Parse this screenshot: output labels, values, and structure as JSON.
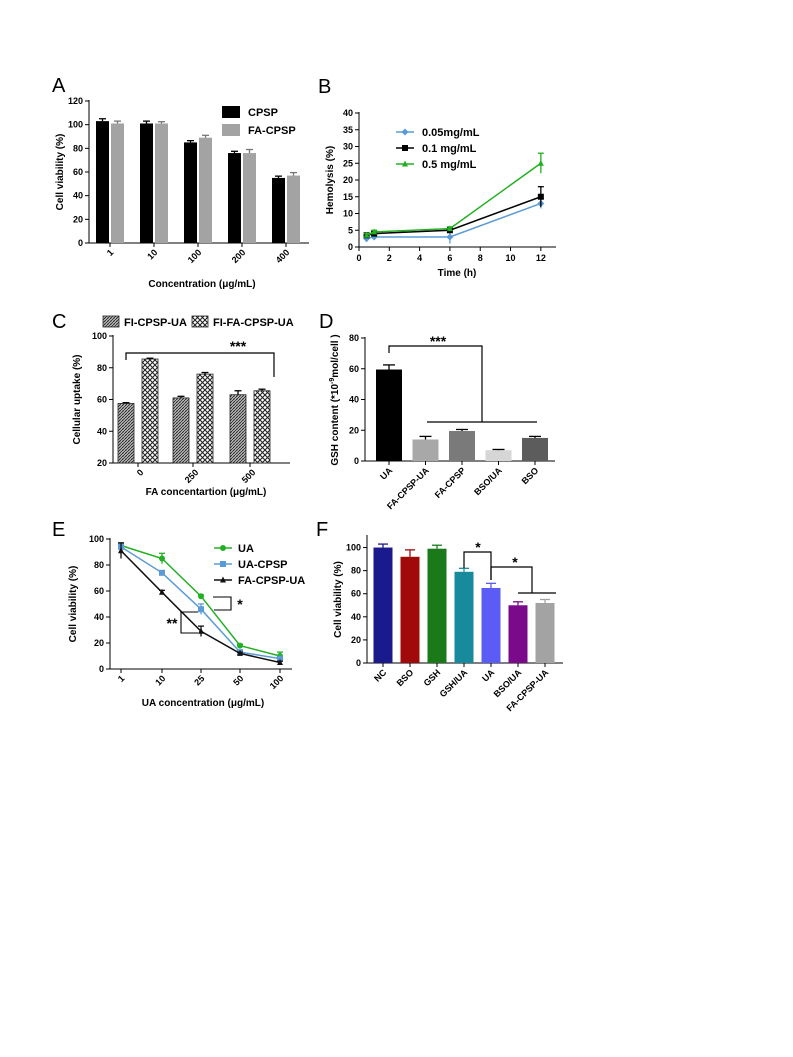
{
  "chart_data": [
    {
      "panel": "A",
      "type": "bar",
      "categories": [
        "1",
        "10",
        "100",
        "200",
        "400"
      ],
      "series": [
        {
          "name": "CPSP",
          "values": [
            103,
            101,
            85,
            76,
            55
          ],
          "errors": [
            2,
            2,
            1.5,
            1.5,
            1.5
          ],
          "color": "#000000"
        },
        {
          "name": "FA-CPSP",
          "values": [
            101,
            101,
            89,
            76,
            57
          ],
          "errors": [
            2,
            1.5,
            2,
            3,
            2.5
          ],
          "color": "#a3a3a3"
        }
      ],
      "ylabel": "Cell viability (%)",
      "xlabel": "Concentration (μg/mL)",
      "ylim": [
        0,
        120
      ],
      "yticks": [
        "0",
        "20",
        "40",
        "60",
        "80",
        "100",
        "120"
      ],
      "legend": "top-right"
    },
    {
      "panel": "B",
      "type": "line",
      "series": [
        {
          "name": "0.05mg/mL",
          "marker": "diamond",
          "color": "#5b9bd5",
          "x": [
            0.5,
            1,
            6,
            12
          ],
          "y": [
            2.5,
            3,
            3,
            13
          ],
          "errors": [
            1,
            0.5,
            2,
            1.5
          ]
        },
        {
          "name": "0.1  mg/mL",
          "marker": "square",
          "color": "#000000",
          "x": [
            0.5,
            1,
            6,
            12
          ],
          "y": [
            3.5,
            4,
            5,
            15
          ],
          "errors": [
            0.5,
            0.5,
            0.5,
            3
          ]
        },
        {
          "name": "0.5  mg/mL",
          "marker": "triangle",
          "color": "#22b022",
          "x": [
            0.5,
            1,
            6,
            12
          ],
          "y": [
            3.5,
            4.5,
            5.5,
            25
          ],
          "errors": [
            0.5,
            0.5,
            0.5,
            3
          ]
        }
      ],
      "ylabel": "Hemolysis (%)",
      "xlabel": "Time (h)",
      "xlim": [
        0,
        13
      ],
      "xticks": [
        "0",
        "2",
        "4",
        "6",
        "8",
        "10",
        "12"
      ],
      "ylim": [
        0,
        40
      ],
      "yticks": [
        "0",
        "5",
        "10",
        "15",
        "20",
        "25",
        "30",
        "35",
        "40"
      ],
      "legend": "top-left"
    },
    {
      "panel": "C",
      "type": "bar",
      "categories": [
        "0",
        "250",
        "500"
      ],
      "series": [
        {
          "name": "FI-CPSP-UA",
          "pattern": "dense-hatch",
          "values": [
            57.5,
            61,
            63
          ],
          "errors": [
            0.5,
            1,
            2.5
          ]
        },
        {
          "name": "FI-FA-CPSP-UA",
          "pattern": "checker",
          "values": [
            85.5,
            76,
            65.5
          ],
          "errors": [
            0.5,
            1,
            1
          ]
        }
      ],
      "ylabel": "Cellular uptake (%)",
      "xlabel": "FA concentartion (μg/mL)",
      "ylim": [
        20,
        100
      ],
      "yticks": [
        "20",
        "40",
        "60",
        "80",
        "100"
      ],
      "annotations": [
        "***"
      ],
      "legend": "top"
    },
    {
      "panel": "D",
      "type": "bar",
      "categories": [
        "UA",
        "FA-CPSP-UA",
        "FA-CPSP",
        "BSO/UA",
        "BSO"
      ],
      "values": [
        59.5,
        14,
        19.5,
        7,
        15
      ],
      "errors": [
        3,
        2,
        1,
        0.5,
        1
      ],
      "colors": [
        "#000000",
        "#a8a8a8",
        "#7a7a7a",
        "#d6d6d6",
        "#5c5c5c"
      ],
      "ylabel_prefix": "GSH content (*10",
      "ylabel_exp": "-9",
      "ylabel_suffix": "mol/cell )",
      "ylim": [
        0,
        80
      ],
      "yticks": [
        "0",
        "20",
        "40",
        "60",
        "80"
      ],
      "annotations": [
        "***"
      ]
    },
    {
      "panel": "E",
      "type": "line",
      "categories": [
        "1",
        "10",
        "25",
        "50",
        "100"
      ],
      "series": [
        {
          "name": "UA",
          "marker": "circle",
          "color": "#22b022",
          "values": [
            95,
            85,
            56,
            18,
            10
          ],
          "errors": [
            2,
            4,
            1,
            1,
            3
          ]
        },
        {
          "name": "UA-CPSP",
          "marker": "square",
          "color": "#5b9bd5",
          "values": [
            94,
            74,
            46,
            13,
            8
          ],
          "errors": [
            2,
            1,
            4,
            1,
            1
          ]
        },
        {
          "name": "FA-CPSP-UA",
          "marker": "triangle",
          "color": "#111111",
          "values": [
            91,
            59,
            29,
            12,
            5
          ],
          "errors": [
            6,
            1.5,
            4,
            1,
            1
          ]
        }
      ],
      "ylabel": "Cell viability (%)",
      "xlabel": "UA concentration (μg/mL)",
      "ylim": [
        0,
        100
      ],
      "yticks": [
        "0",
        "20",
        "40",
        "60",
        "80",
        "100"
      ],
      "annotations": [
        "*",
        "**"
      ],
      "legend": "top-right"
    },
    {
      "panel": "F",
      "type": "bar",
      "categories": [
        "NC",
        "BSO",
        "GSH",
        "GSH/UA",
        "UA",
        "BSO/UA",
        "FA-CPSP-UA"
      ],
      "values": [
        100,
        92,
        99,
        79,
        65,
        50,
        52
      ],
      "errors": [
        3,
        6,
        3,
        3,
        4,
        3,
        3
      ],
      "colors": [
        "#1a1a8c",
        "#a00a0a",
        "#1a7a1a",
        "#178a9c",
        "#5b5bf5",
        "#7a0a8a",
        "#a3a3a3"
      ],
      "ylabel": "Cell viability (%)",
      "ylim": [
        0,
        110
      ],
      "yticks": [
        "0",
        "20",
        "40",
        "60",
        "80",
        "100"
      ],
      "annotations": [
        "*",
        "*"
      ]
    }
  ]
}
